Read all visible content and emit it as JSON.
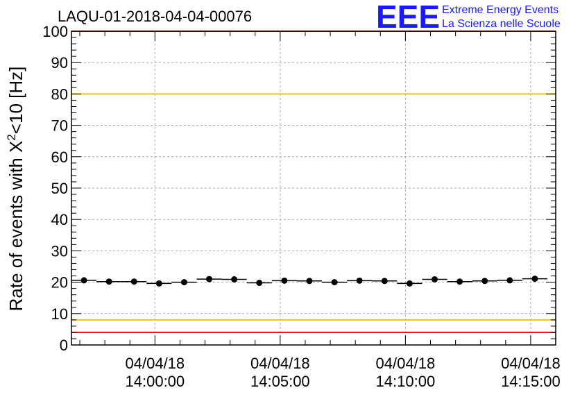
{
  "title": "LAQU-01-2018-04-04-00076",
  "logo": {
    "mark": "EEE",
    "line1": "Extreme Energy Events",
    "line2": "La Scienza nelle Scuole",
    "color": "#1a1aff"
  },
  "chart_data": {
    "type": "scatter",
    "title": "LAQU-01-2018-04-04-00076",
    "ylabel": "Rate of events with X",
    "ylabel_sup": "2",
    "ylabel_suffix": "<10 [Hz]",
    "xlabel": "",
    "ylim": [
      0,
      100
    ],
    "yticks": [
      "0",
      "10",
      "20",
      "30",
      "40",
      "50",
      "60",
      "70",
      "80",
      "90",
      "100"
    ],
    "xlim": [
      "13:56:40",
      "14:16:00"
    ],
    "xticks": [
      {
        "time": "14:00:00",
        "date": "04/04/18"
      },
      {
        "time": "14:05:00",
        "date": "04/04/18"
      },
      {
        "time": "14:10:00",
        "date": "04/04/18"
      },
      {
        "time": "14:15:00",
        "date": "04/04/18"
      }
    ],
    "bin_width_seconds": 60,
    "grid": true,
    "reference_lines": [
      {
        "value": 80,
        "color": "#f2c200"
      },
      {
        "value": 8,
        "color": "#f2c200"
      },
      {
        "value": 4,
        "color": "#ff0000"
      },
      {
        "value": 100,
        "color": "#ff0000"
      }
    ],
    "series": [
      {
        "color": "#000000",
        "x": [
          "13:57:10",
          "13:58:10",
          "13:59:10",
          "14:00:10",
          "14:01:10",
          "14:02:10",
          "14:03:10",
          "14:04:10",
          "14:05:10",
          "14:06:10",
          "14:07:10",
          "14:08:10",
          "14:09:10",
          "14:10:10",
          "14:11:10",
          "14:12:10",
          "14:13:10",
          "14:14:10",
          "14:15:10"
        ],
        "y": [
          20.6,
          20.2,
          20.2,
          19.6,
          20.0,
          21.0,
          20.9,
          19.8,
          20.5,
          20.4,
          20.0,
          20.5,
          20.4,
          19.6,
          20.9,
          20.2,
          20.4,
          20.6,
          21.1
        ]
      }
    ]
  }
}
